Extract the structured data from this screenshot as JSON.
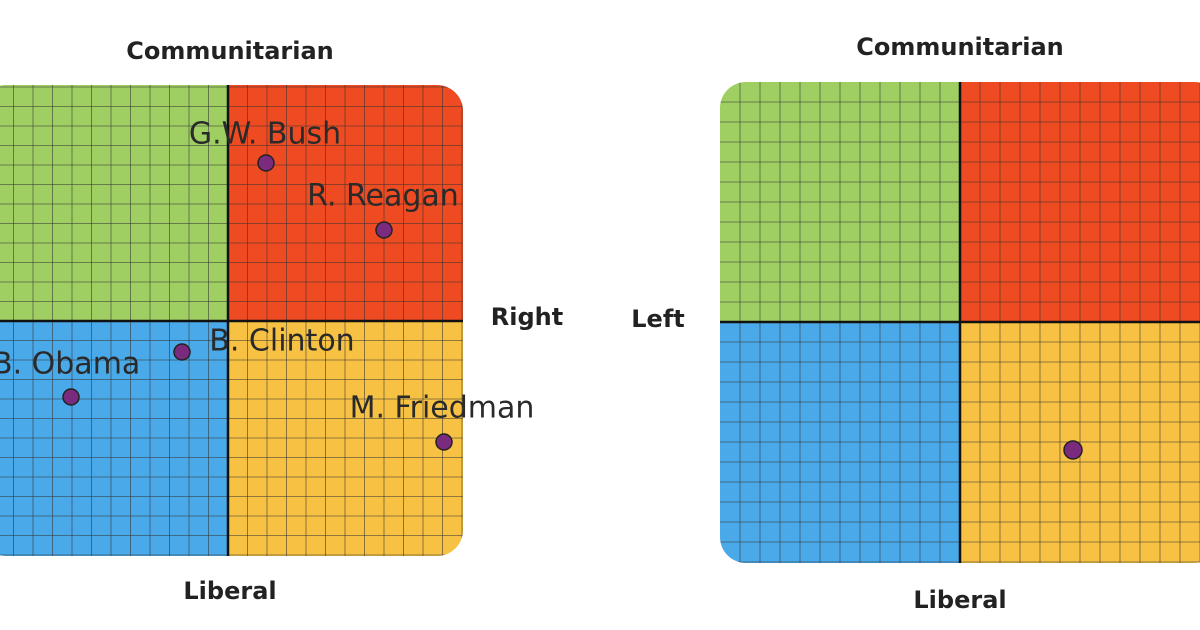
{
  "left_compass": {
    "top_label": "Communitarian",
    "right_label": "Right",
    "bottom_label": "Liberal",
    "points": [
      {
        "label": "G.W. Bush"
      },
      {
        "label": "R. Reagan"
      },
      {
        "label": "B. Clinton"
      },
      {
        "label": "B. Obama"
      },
      {
        "label": "M. Friedman"
      }
    ]
  },
  "right_compass": {
    "top_label": "Communitarian",
    "left_label": "Left",
    "bottom_label": "Liberal"
  }
}
